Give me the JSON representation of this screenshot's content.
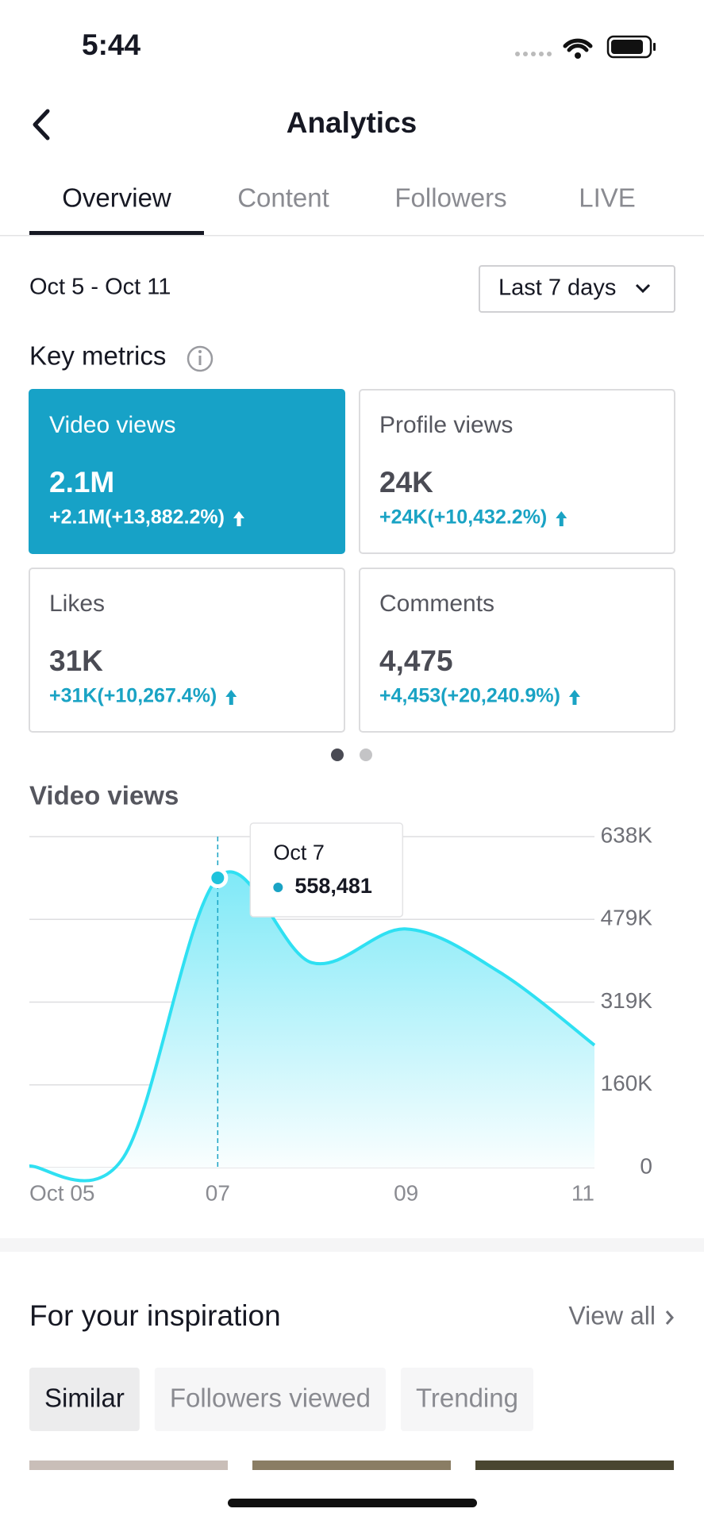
{
  "status_bar": {
    "time": "5:44"
  },
  "header": {
    "title": "Analytics"
  },
  "tabs": [
    "Overview",
    "Content",
    "Followers",
    "LIVE"
  ],
  "date_range": "Oct 5 - Oct 11",
  "period_filter": "Last 7 days",
  "key_metrics": {
    "title": "Key metrics",
    "cards": [
      {
        "label": "Video views",
        "value": "2.1M",
        "change": "+2.1M(+13,882.2%)"
      },
      {
        "label": "Profile views",
        "value": "24K",
        "change": "+24K(+10,432.2%)"
      },
      {
        "label": "Likes",
        "value": "31K",
        "change": "+31K(+10,267.4%)"
      },
      {
        "label": "Comments",
        "value": "4,475",
        "change": "+4,453(+20,240.9%)"
      }
    ]
  },
  "chart_data": {
    "type": "area",
    "title": "Video views",
    "categories": [
      "Oct 05",
      null,
      "07",
      null,
      "09",
      null,
      "11"
    ],
    "values": [
      3000,
      20000,
      558481,
      395000,
      460000,
      376000,
      236000
    ],
    "value_labels": [
      null,
      null,
      "558,481",
      null,
      null,
      null,
      null
    ],
    "tooltip_title": "Oct 7",
    "color": "#2fe0f2",
    "ylim": [
      0,
      638000
    ],
    "yticks": [
      0,
      {
        "value": 159500,
        "label": "160K"
      },
      {
        "value": 319000,
        "label": "319K"
      },
      {
        "value": 478500,
        "label": "479K"
      },
      {
        "value": 638000,
        "label": "638K"
      }
    ],
    "grid": true
  },
  "inspiration": {
    "title": "For your inspiration",
    "view_all": "View all",
    "chips": [
      "Similar",
      "Followers viewed",
      "Trending"
    ]
  }
}
